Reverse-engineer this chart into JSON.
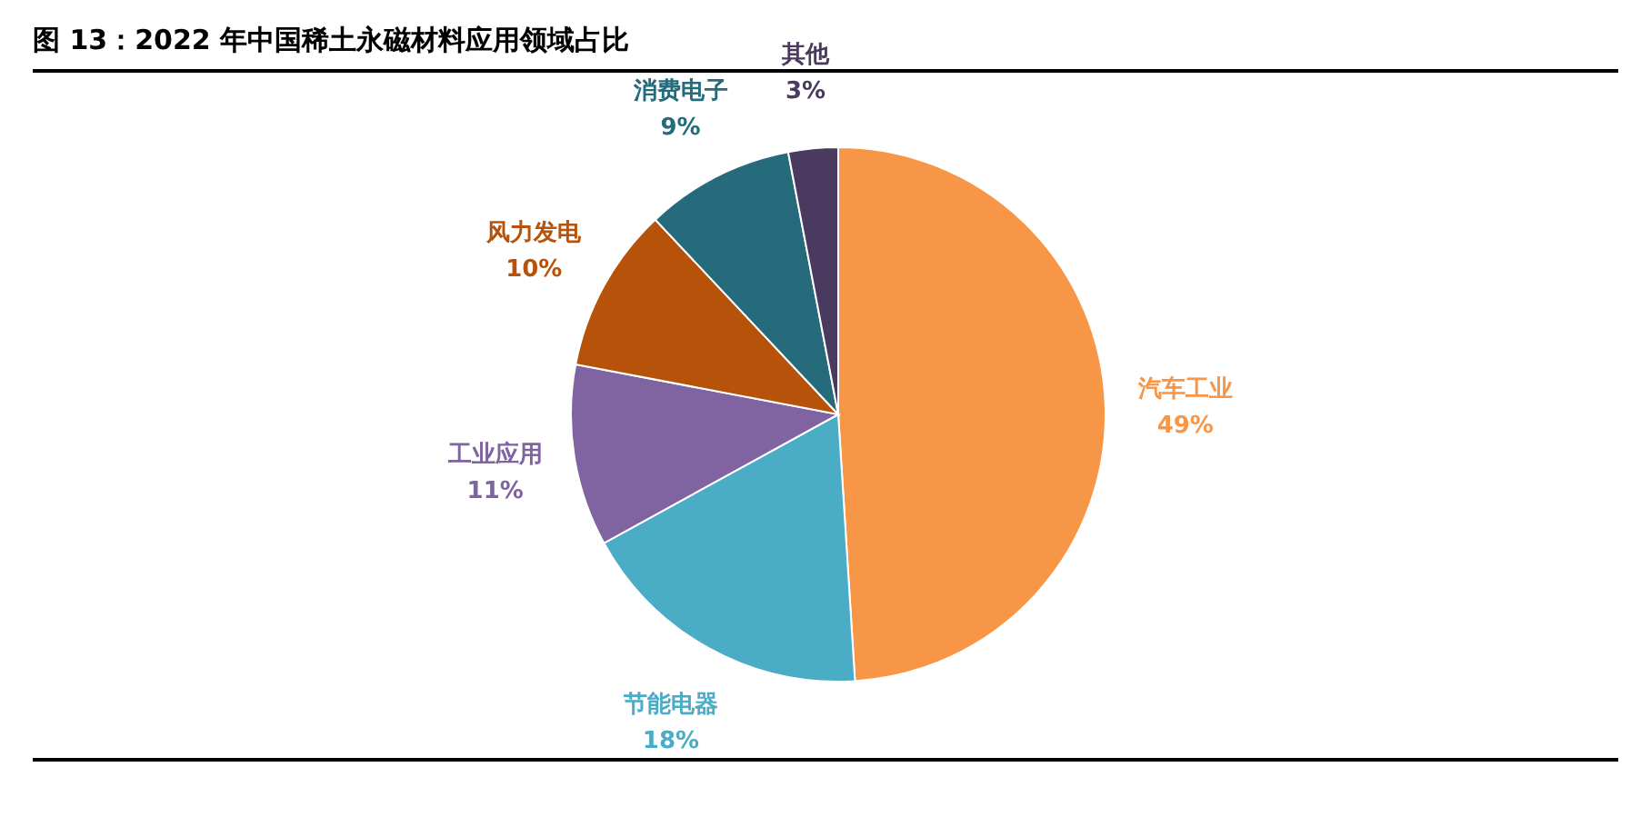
{
  "chart_data": {
    "type": "pie",
    "title": "图 13：2022 年中国稀土永磁材料应用领域占比",
    "categories": [
      "汽车工业",
      "节能电器",
      "工业应用",
      "风力发电",
      "消费电子",
      "其他"
    ],
    "values": [
      49,
      18,
      11,
      10,
      9,
      3
    ],
    "value_labels": [
      "49%",
      "18%",
      "11%",
      "10%",
      "9%",
      "3%"
    ],
    "colors": [
      "#f79646",
      "#4bacc6",
      "#8064a2",
      "#b7520b",
      "#256b7b",
      "#4b3a5f"
    ]
  }
}
